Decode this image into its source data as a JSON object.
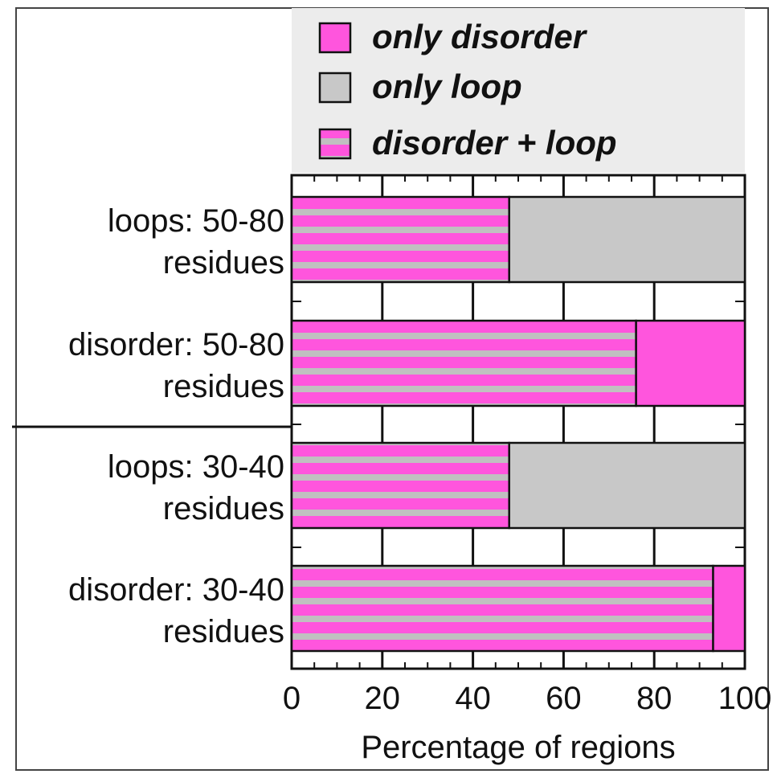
{
  "chart_data": {
    "type": "bar",
    "stacked": true,
    "orientation": "horizontal",
    "categories": [
      "loops: 50-80 residues",
      "disorder: 50-80 residues",
      "loops: 30-40 residues",
      "disorder: 30-40 residues"
    ],
    "category_lines": [
      [
        "loops: 50-80",
        "residues"
      ],
      [
        "disorder: 50-80",
        "residues"
      ],
      [
        "loops: 30-40",
        "residues"
      ],
      [
        "disorder: 30-40",
        "residues"
      ]
    ],
    "series": [
      {
        "name": "disorder + loop",
        "key": "both",
        "values": [
          48,
          76,
          48,
          93
        ]
      },
      {
        "name": "only loop",
        "key": "loop",
        "values": [
          52,
          0,
          52,
          0
        ]
      },
      {
        "name": "only disorder",
        "key": "dis",
        "values": [
          0,
          24,
          0,
          7
        ]
      }
    ],
    "legend_order": [
      "dis",
      "loop",
      "both"
    ],
    "xlabel": "Percentage of regions",
    "xlim": [
      0,
      100
    ],
    "xticks": [
      0,
      20,
      40,
      60,
      80,
      100
    ],
    "grid": false,
    "legend_position": "top",
    "colors": {
      "dis": "#ff55dd",
      "loop": "#c8c8c8",
      "stripe_pink": "#ff55dd",
      "stripe_gray": "#c0c0c0",
      "legend_bg": "#ececec",
      "axis": "#111111"
    }
  }
}
